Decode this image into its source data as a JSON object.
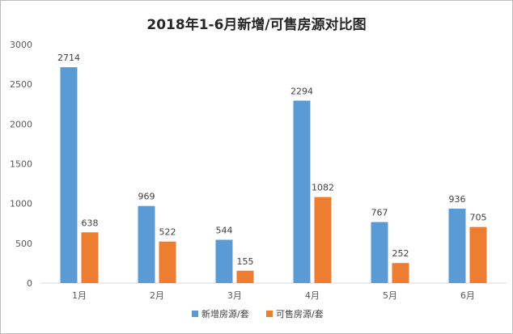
{
  "chart_data": {
    "type": "bar",
    "title": "2018年1-6月新增/可售房源对比图",
    "categories": [
      "1月",
      "2月",
      "3月",
      "4月",
      "5月",
      "6月"
    ],
    "series": [
      {
        "name": "新增房源/套",
        "color": "#5b9bd5",
        "values": [
          2714,
          969,
          544,
          2294,
          767,
          936
        ]
      },
      {
        "name": "可售房源/套",
        "color": "#ed7d31",
        "values": [
          638,
          522,
          155,
          1082,
          252,
          705
        ]
      }
    ],
    "yticks": [
      "0",
      "500",
      "1000",
      "1500",
      "2000",
      "2500",
      "3000"
    ],
    "ylim": [
      0,
      3000
    ],
    "grid": false,
    "legend": "bottom-center",
    "xlabel": "",
    "ylabel": ""
  }
}
